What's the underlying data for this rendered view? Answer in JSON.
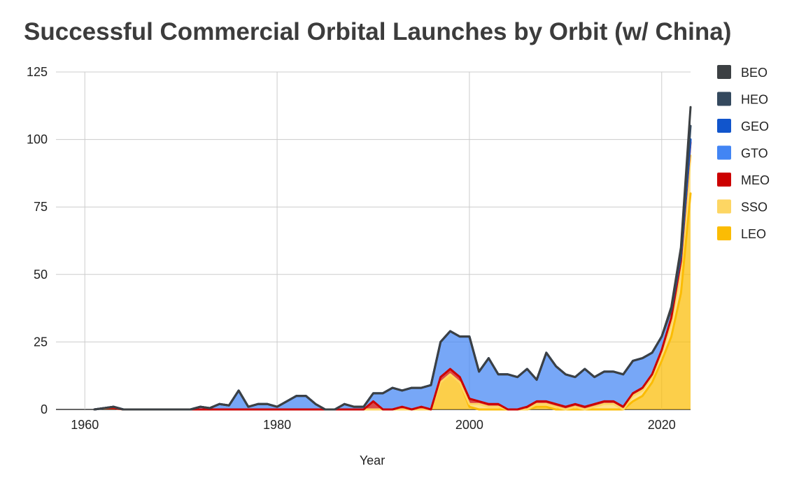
{
  "chart_data": {
    "type": "area",
    "stacked": true,
    "title": "Successful Commercial Orbital Launches by Orbit (w/ China)",
    "xlabel": "Year",
    "ylabel": "",
    "xlim": [
      1957,
      2023
    ],
    "ylim": [
      0,
      125
    ],
    "x_ticks": [
      1960,
      1980,
      2000,
      2020
    ],
    "y_ticks": [
      0,
      25,
      50,
      75,
      100,
      125
    ],
    "grid": true,
    "legend_position": "right",
    "x": [
      1961,
      1962,
      1963,
      1964,
      1965,
      1970,
      1971,
      1972,
      1973,
      1974,
      1975,
      1976,
      1977,
      1978,
      1979,
      1980,
      1981,
      1982,
      1983,
      1984,
      1985,
      1986,
      1987,
      1988,
      1989,
      1990,
      1991,
      1992,
      1993,
      1994,
      1995,
      1996,
      1997,
      1998,
      1999,
      2000,
      2001,
      2002,
      2003,
      2004,
      2005,
      2006,
      2007,
      2008,
      2009,
      2010,
      2011,
      2012,
      2013,
      2014,
      2015,
      2016,
      2017,
      2018,
      2019,
      2020,
      2021,
      2022,
      2023
    ],
    "series": [
      {
        "name": "LEO",
        "color": "#fbbc04",
        "values": [
          0,
          0.5,
          0.5,
          0,
          0,
          0,
          0,
          0,
          0,
          0,
          0,
          0,
          0,
          0,
          0,
          0,
          0,
          0,
          0,
          0,
          0,
          0,
          0,
          0,
          0,
          0,
          0,
          0,
          0,
          0,
          0,
          0,
          10,
          13,
          10,
          1,
          0,
          0,
          0,
          0,
          0,
          0,
          1,
          1,
          0,
          0,
          0,
          0,
          0,
          0,
          0,
          0,
          3,
          5,
          10,
          18,
          27,
          43,
          80
        ]
      },
      {
        "name": "SSO",
        "color": "#fdd663",
        "values": [
          0,
          0,
          0,
          0,
          0,
          0,
          0,
          0,
          0,
          0,
          0,
          0,
          0,
          0,
          0,
          0,
          0,
          0,
          0,
          0,
          0,
          0,
          0,
          0,
          0,
          0,
          0,
          0,
          0,
          0,
          0,
          0,
          0,
          0,
          0,
          1,
          2,
          1,
          1,
          0,
          0,
          0,
          1,
          1,
          1,
          0,
          1,
          0,
          1,
          2,
          2,
          0,
          2,
          2,
          2,
          3,
          5,
          8,
          14
        ]
      },
      {
        "name": "MEO",
        "color": "#cc0000",
        "values": [
          0,
          0,
          0,
          0,
          0,
          0,
          0,
          0,
          0,
          0,
          0,
          0,
          0,
          0,
          0,
          0,
          0,
          0,
          0,
          0,
          0,
          0,
          0,
          0,
          0,
          3,
          0,
          0,
          1,
          0,
          1,
          0,
          2,
          2,
          2,
          2,
          1,
          1,
          1,
          0,
          0,
          1,
          1,
          1,
          1,
          1,
          1,
          1,
          1,
          1,
          1,
          1,
          1,
          1,
          1,
          1,
          2,
          4,
          5
        ]
      },
      {
        "name": "GTO",
        "color": "#4285f4",
        "values": [
          0,
          0,
          0.5,
          0,
          0,
          0,
          0,
          1,
          0.5,
          2,
          1.5,
          7,
          1,
          2,
          2,
          1,
          3,
          5,
          5,
          2,
          0,
          0,
          2,
          1,
          1,
          3,
          6,
          8,
          6,
          8,
          7,
          9,
          13,
          14,
          15,
          23,
          11,
          17,
          11,
          13,
          12,
          14,
          8,
          18,
          14,
          12,
          10,
          14,
          10,
          11,
          11,
          12,
          12,
          11,
          8,
          5,
          3,
          2,
          1
        ]
      },
      {
        "name": "GEO",
        "color": "#1155cc",
        "values": [
          0,
          0,
          0,
          0,
          0,
          0,
          0,
          0,
          0,
          0,
          0,
          0,
          0,
          0,
          0,
          0,
          0,
          0,
          0,
          0,
          0,
          0,
          0,
          0,
          0,
          0,
          0,
          0,
          0,
          0,
          0,
          0,
          0,
          0,
          0,
          0,
          0,
          0,
          0,
          0,
          0,
          0,
          0,
          0,
          0,
          0,
          0,
          0,
          0,
          0,
          0,
          0,
          0,
          0,
          0,
          0,
          0,
          0,
          0
        ]
      },
      {
        "name": "HEO",
        "color": "#34495e",
        "values": [
          0,
          0,
          0,
          0,
          0,
          0,
          0,
          0,
          0,
          0,
          0,
          0,
          0,
          0,
          0,
          0,
          0,
          0,
          0,
          0,
          0,
          0,
          0,
          0,
          0,
          0,
          0,
          0,
          0,
          0,
          0,
          0,
          0,
          0,
          0,
          0,
          0,
          0,
          0,
          0,
          0,
          0,
          0,
          0,
          0,
          0,
          0,
          0,
          0,
          0,
          0,
          0,
          0,
          0,
          0,
          0,
          0,
          1,
          5
        ]
      },
      {
        "name": "BEO",
        "color": "#3c4043",
        "values": [
          0,
          0,
          0,
          0,
          0,
          0,
          0,
          0,
          0,
          0,
          0,
          0,
          0,
          0,
          0,
          0,
          0,
          0,
          0,
          0,
          0,
          0,
          0,
          0,
          0,
          0,
          0,
          0,
          0,
          0,
          0,
          0,
          0,
          0,
          0,
          0,
          0,
          0,
          0,
          0,
          0,
          0,
          0,
          0,
          0,
          0,
          0,
          0,
          0,
          0,
          0,
          0,
          0,
          0,
          0,
          0,
          1,
          2,
          7
        ]
      }
    ]
  }
}
